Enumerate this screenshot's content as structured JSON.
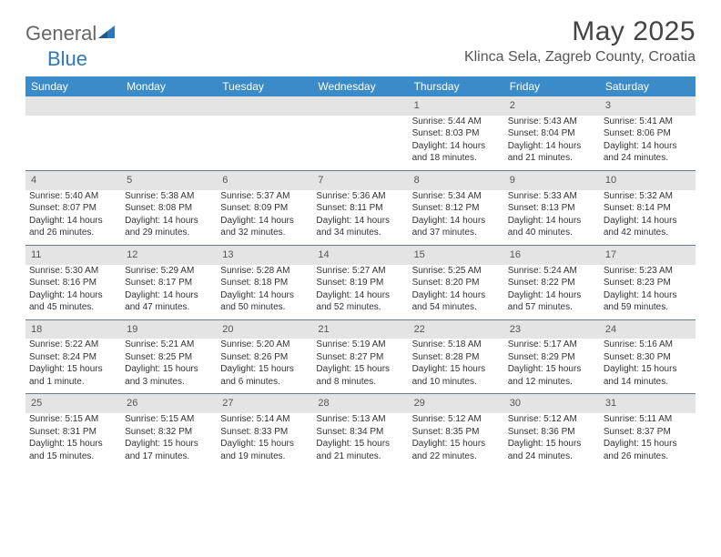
{
  "brand": {
    "part1": "General",
    "part2": "Blue"
  },
  "title": "May 2025",
  "location": "Klinca Sela, Zagreb County, Croatia",
  "colors": {
    "header_bg": "#3b8bc9",
    "header_text": "#ffffff",
    "daynum_bg": "#e4e4e4",
    "row_border": "#6b7a8a",
    "brand_blue": "#2f78b8"
  },
  "weekdays": [
    "Sunday",
    "Monday",
    "Tuesday",
    "Wednesday",
    "Thursday",
    "Friday",
    "Saturday"
  ],
  "weeks": [
    [
      null,
      null,
      null,
      null,
      {
        "n": "1",
        "sr": "Sunrise: 5:44 AM",
        "ss": "Sunset: 8:03 PM",
        "dl": "Daylight: 14 hours and 18 minutes."
      },
      {
        "n": "2",
        "sr": "Sunrise: 5:43 AM",
        "ss": "Sunset: 8:04 PM",
        "dl": "Daylight: 14 hours and 21 minutes."
      },
      {
        "n": "3",
        "sr": "Sunrise: 5:41 AM",
        "ss": "Sunset: 8:06 PM",
        "dl": "Daylight: 14 hours and 24 minutes."
      }
    ],
    [
      {
        "n": "4",
        "sr": "Sunrise: 5:40 AM",
        "ss": "Sunset: 8:07 PM",
        "dl": "Daylight: 14 hours and 26 minutes."
      },
      {
        "n": "5",
        "sr": "Sunrise: 5:38 AM",
        "ss": "Sunset: 8:08 PM",
        "dl": "Daylight: 14 hours and 29 minutes."
      },
      {
        "n": "6",
        "sr": "Sunrise: 5:37 AM",
        "ss": "Sunset: 8:09 PM",
        "dl": "Daylight: 14 hours and 32 minutes."
      },
      {
        "n": "7",
        "sr": "Sunrise: 5:36 AM",
        "ss": "Sunset: 8:11 PM",
        "dl": "Daylight: 14 hours and 34 minutes."
      },
      {
        "n": "8",
        "sr": "Sunrise: 5:34 AM",
        "ss": "Sunset: 8:12 PM",
        "dl": "Daylight: 14 hours and 37 minutes."
      },
      {
        "n": "9",
        "sr": "Sunrise: 5:33 AM",
        "ss": "Sunset: 8:13 PM",
        "dl": "Daylight: 14 hours and 40 minutes."
      },
      {
        "n": "10",
        "sr": "Sunrise: 5:32 AM",
        "ss": "Sunset: 8:14 PM",
        "dl": "Daylight: 14 hours and 42 minutes."
      }
    ],
    [
      {
        "n": "11",
        "sr": "Sunrise: 5:30 AM",
        "ss": "Sunset: 8:16 PM",
        "dl": "Daylight: 14 hours and 45 minutes."
      },
      {
        "n": "12",
        "sr": "Sunrise: 5:29 AM",
        "ss": "Sunset: 8:17 PM",
        "dl": "Daylight: 14 hours and 47 minutes."
      },
      {
        "n": "13",
        "sr": "Sunrise: 5:28 AM",
        "ss": "Sunset: 8:18 PM",
        "dl": "Daylight: 14 hours and 50 minutes."
      },
      {
        "n": "14",
        "sr": "Sunrise: 5:27 AM",
        "ss": "Sunset: 8:19 PM",
        "dl": "Daylight: 14 hours and 52 minutes."
      },
      {
        "n": "15",
        "sr": "Sunrise: 5:25 AM",
        "ss": "Sunset: 8:20 PM",
        "dl": "Daylight: 14 hours and 54 minutes."
      },
      {
        "n": "16",
        "sr": "Sunrise: 5:24 AM",
        "ss": "Sunset: 8:22 PM",
        "dl": "Daylight: 14 hours and 57 minutes."
      },
      {
        "n": "17",
        "sr": "Sunrise: 5:23 AM",
        "ss": "Sunset: 8:23 PM",
        "dl": "Daylight: 14 hours and 59 minutes."
      }
    ],
    [
      {
        "n": "18",
        "sr": "Sunrise: 5:22 AM",
        "ss": "Sunset: 8:24 PM",
        "dl": "Daylight: 15 hours and 1 minute."
      },
      {
        "n": "19",
        "sr": "Sunrise: 5:21 AM",
        "ss": "Sunset: 8:25 PM",
        "dl": "Daylight: 15 hours and 3 minutes."
      },
      {
        "n": "20",
        "sr": "Sunrise: 5:20 AM",
        "ss": "Sunset: 8:26 PM",
        "dl": "Daylight: 15 hours and 6 minutes."
      },
      {
        "n": "21",
        "sr": "Sunrise: 5:19 AM",
        "ss": "Sunset: 8:27 PM",
        "dl": "Daylight: 15 hours and 8 minutes."
      },
      {
        "n": "22",
        "sr": "Sunrise: 5:18 AM",
        "ss": "Sunset: 8:28 PM",
        "dl": "Daylight: 15 hours and 10 minutes."
      },
      {
        "n": "23",
        "sr": "Sunrise: 5:17 AM",
        "ss": "Sunset: 8:29 PM",
        "dl": "Daylight: 15 hours and 12 minutes."
      },
      {
        "n": "24",
        "sr": "Sunrise: 5:16 AM",
        "ss": "Sunset: 8:30 PM",
        "dl": "Daylight: 15 hours and 14 minutes."
      }
    ],
    [
      {
        "n": "25",
        "sr": "Sunrise: 5:15 AM",
        "ss": "Sunset: 8:31 PM",
        "dl": "Daylight: 15 hours and 15 minutes."
      },
      {
        "n": "26",
        "sr": "Sunrise: 5:15 AM",
        "ss": "Sunset: 8:32 PM",
        "dl": "Daylight: 15 hours and 17 minutes."
      },
      {
        "n": "27",
        "sr": "Sunrise: 5:14 AM",
        "ss": "Sunset: 8:33 PM",
        "dl": "Daylight: 15 hours and 19 minutes."
      },
      {
        "n": "28",
        "sr": "Sunrise: 5:13 AM",
        "ss": "Sunset: 8:34 PM",
        "dl": "Daylight: 15 hours and 21 minutes."
      },
      {
        "n": "29",
        "sr": "Sunrise: 5:12 AM",
        "ss": "Sunset: 8:35 PM",
        "dl": "Daylight: 15 hours and 22 minutes."
      },
      {
        "n": "30",
        "sr": "Sunrise: 5:12 AM",
        "ss": "Sunset: 8:36 PM",
        "dl": "Daylight: 15 hours and 24 minutes."
      },
      {
        "n": "31",
        "sr": "Sunrise: 5:11 AM",
        "ss": "Sunset: 8:37 PM",
        "dl": "Daylight: 15 hours and 26 minutes."
      }
    ]
  ]
}
